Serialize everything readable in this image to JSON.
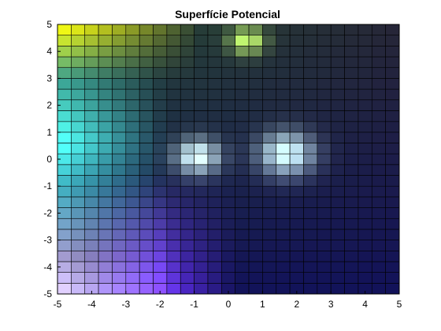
{
  "chart_data": {
    "type": "heatmap",
    "title": "Superfície Potencial",
    "xlabel": "",
    "ylabel": "",
    "xlim": [
      -5,
      5
    ],
    "ylim": [
      -5,
      5
    ],
    "xticks": [
      "-5",
      "-4",
      "-3",
      "-2",
      "-1",
      "0",
      "1",
      "2",
      "3",
      "4",
      "5"
    ],
    "yticks": [
      "-5",
      "-4",
      "-3",
      "-2",
      "-1",
      "0",
      "1",
      "2",
      "3",
      "4",
      "5"
    ],
    "grid_resolution": 0.4,
    "grid_lines": "black cell edges",
    "colormap": "multicolor (white / cyan / yellow-green / blue / violet / dark navy)",
    "features": [
      {
        "description": "bright yellow region",
        "location": "upper-left corner"
      },
      {
        "description": "cyan band",
        "location": "left side"
      },
      {
        "description": "white / lavender region",
        "location": "lower-left corner"
      },
      {
        "description": "bright spot (white-cyan-green)",
        "location": "near (-1, 0.2)"
      },
      {
        "description": "bright spot (white-cyan)",
        "location": "near (1.6, 0.3)"
      },
      {
        "description": "green-yellow spike",
        "location": "near (0.6, 4.5)"
      }
    ]
  }
}
